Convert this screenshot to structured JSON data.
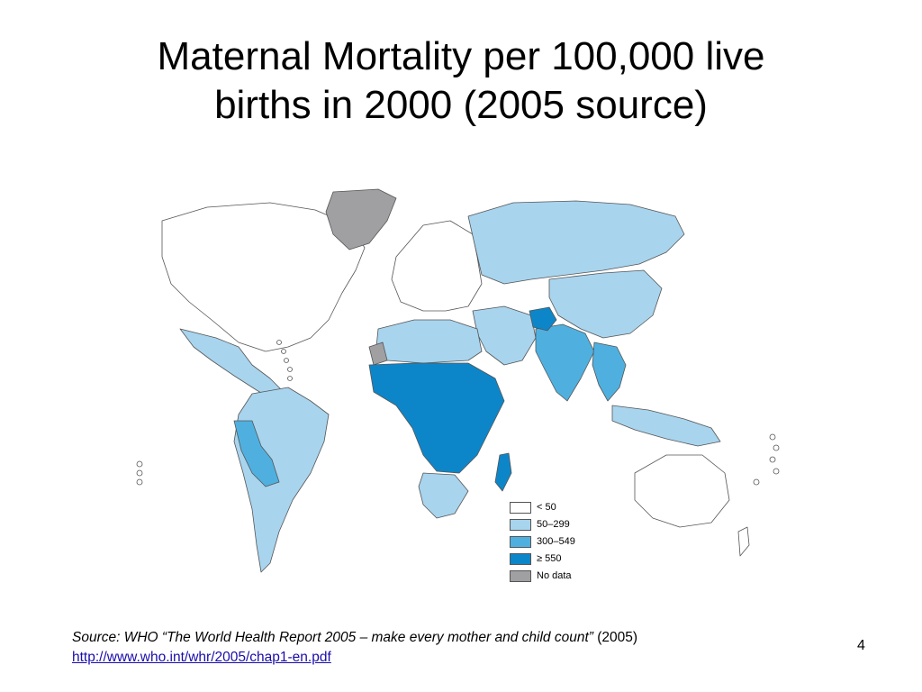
{
  "slide": {
    "title_line1": "Maternal Mortality per 100,000 live",
    "title_line2": "births in 2000 (2005 source)",
    "page_number": "4"
  },
  "legend": {
    "items": [
      {
        "label": "< 50",
        "color": "#ffffff"
      },
      {
        "label": "50–299",
        "color": "#a8d4ee"
      },
      {
        "label": "300–549",
        "color": "#4fb0e0"
      },
      {
        "label": "≥ 550",
        "color": "#0d86c9"
      },
      {
        "label": "No data",
        "color": "#a0a0a2"
      }
    ]
  },
  "source": {
    "prefix": "Source: WHO “The World Health Report 2005 – make every mother and child count”",
    "year": "(2005)",
    "url": "http://www.who.int/whr/2005/chap1-en.pdf"
  },
  "colors": {
    "lt50": "#ffffff",
    "r50_299": "#a8d4ee",
    "r300_549": "#4fb0e0",
    "ge550": "#0d86c9",
    "nodata": "#a0a0a2"
  }
}
